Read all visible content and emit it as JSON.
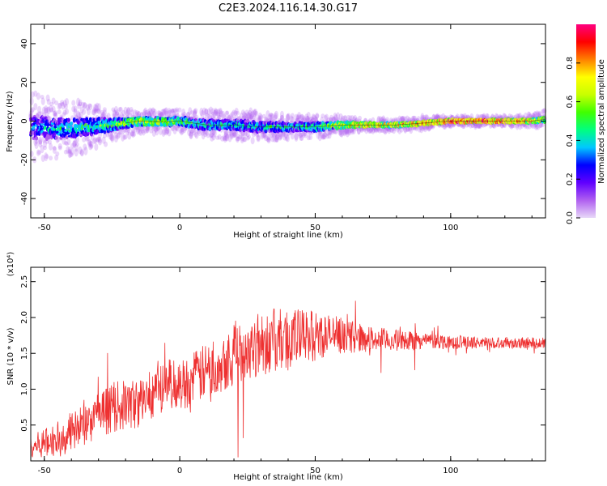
{
  "title": "C2E3.2024.116.14.30.G17",
  "chart_data": [
    {
      "type": "heatmap",
      "xlabel": "Height of straight line (km)",
      "ylabel": "Frequency (Hz)",
      "xlim": [
        -55,
        135
      ],
      "ylim": [
        -50,
        50
      ],
      "x_ticks": [
        -50,
        0,
        50,
        100
      ],
      "y_ticks": [
        -40,
        -20,
        0,
        20,
        40
      ],
      "colorbar": {
        "label": "Normalized spectral amplitude",
        "range": [
          0.0,
          1.0
        ],
        "ticks": [
          0.0,
          0.2,
          0.4,
          0.6,
          0.8
        ],
        "tick_labels": [
          "0.0",
          "0.2",
          "0.4",
          "0.6",
          "0.8"
        ],
        "colors": [
          "#e8d8f8",
          "#b060f0",
          "#6000ff",
          "#0000ff",
          "#00c8ff",
          "#00ff80",
          "#40ff00",
          "#c8ff00",
          "#ffff00",
          "#ff8000",
          "#ff0000",
          "#ff0080"
        ]
      },
      "ridge": {
        "x": [
          -55,
          -45,
          -35,
          -25,
          -15,
          -5,
          0,
          10,
          20,
          30,
          40,
          50,
          60,
          70,
          80,
          90,
          100,
          110,
          120,
          130,
          135
        ],
        "frequency": [
          -3,
          -4,
          -3,
          -2,
          0,
          -0.5,
          0,
          -2,
          -2,
          -3,
          -3,
          -3,
          -2,
          -2,
          -2,
          -1,
          0,
          0,
          0,
          0,
          1
        ],
        "amplitude": [
          0.35,
          0.4,
          0.45,
          0.5,
          0.65,
          0.6,
          0.55,
          0.45,
          0.45,
          0.45,
          0.45,
          0.5,
          0.7,
          0.8,
          0.75,
          0.8,
          0.95,
          0.95,
          0.9,
          0.8,
          0.6
        ],
        "spread": [
          12,
          10,
          9,
          6,
          4,
          4,
          4,
          5,
          5,
          5,
          4,
          4,
          3,
          2,
          2,
          2,
          1.5,
          1.5,
          1.5,
          2,
          3
        ]
      }
    },
    {
      "type": "line",
      "xlabel": "Height of straight line (km)",
      "ylabel": "SNR (10 * v/v)",
      "y_multiplier": "(x10⁴)",
      "xlim": [
        -55,
        135
      ],
      "ylim": [
        0,
        27000
      ],
      "x_ticks": [
        -50,
        0,
        50,
        100
      ],
      "y_ticks": [
        5000,
        10000,
        15000,
        20000,
        25000
      ],
      "y_tick_labels": [
        "0.5",
        "1.0",
        "1.5",
        "2.0",
        "2.5"
      ],
      "series": [
        {
          "color": "#ee3030",
          "trend": {
            "x": [
              -55,
              -45,
              -35,
              -25,
              -15,
              -10,
              -5,
              0,
              10,
              20,
              30,
              40,
              50,
              60,
              70,
              80,
              90,
              100,
              110,
              120,
              135
            ],
            "y": [
              2000,
              3000,
              5000,
              7500,
              8000,
              9500,
              11000,
              10500,
              12500,
              15000,
              16500,
              17000,
              17500,
              17500,
              17000,
              16800,
              16800,
              16600,
              16500,
              16500,
              16400
            ],
            "noise": [
              1500,
              2500,
              3000,
              3500,
              3500,
              3500,
              3500,
              3500,
              4000,
              4500,
              4500,
              4500,
              3500,
              2500,
              1800,
              1500,
              1200,
              1000,
              800,
              800,
              800
            ]
          }
        }
      ]
    }
  ]
}
